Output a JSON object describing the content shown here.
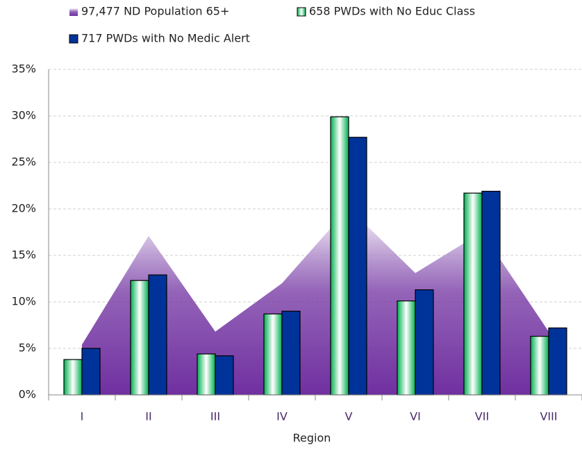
{
  "chart_data": {
    "type": "bar",
    "x_label": "Region",
    "categories": [
      "I",
      "II",
      "III",
      "IV",
      "V",
      "VI",
      "VII",
      "VIII"
    ],
    "series": [
      {
        "name": "97,477 ND Population 65+",
        "type": "area",
        "color": "#7030a0",
        "values": [
          5.4,
          17.1,
          6.8,
          12.0,
          20.1,
          13.1,
          17.5,
          6.8
        ]
      },
      {
        "name": "658 PWDs with No Educ Class",
        "type": "bar",
        "color": "#00b050",
        "values": [
          3.8,
          12.3,
          4.4,
          8.7,
          29.9,
          10.1,
          21.7,
          6.3
        ]
      },
      {
        "name": "717 PWDs with No Medic Alert",
        "type": "bar",
        "color": "#003399",
        "values": [
          5.0,
          12.9,
          4.2,
          9.0,
          27.7,
          11.3,
          21.9,
          7.2
        ]
      }
    ],
    "ylim": [
      0,
      35
    ],
    "yticks": [
      {
        "value": 0,
        "label": "0%"
      },
      {
        "value": 5,
        "label": "5%"
      },
      {
        "value": 10,
        "label": "10%"
      },
      {
        "value": 15,
        "label": "15%"
      },
      {
        "value": 20,
        "label": "20%"
      },
      {
        "value": 25,
        "label": "25%"
      },
      {
        "value": 30,
        "label": "30%"
      },
      {
        "value": 35,
        "label": "35%"
      }
    ],
    "grid": true
  }
}
